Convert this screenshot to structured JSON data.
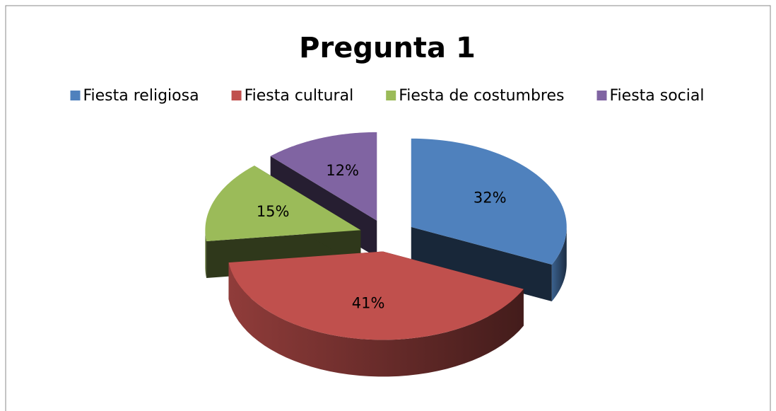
{
  "chart_data": {
    "type": "pie",
    "title": "Pregunta 1",
    "categories": [
      "Fiesta religiosa",
      "Fiesta cultural",
      "Fiesta de costumbres",
      "Fiesta social"
    ],
    "values": [
      32,
      41,
      15,
      12
    ],
    "value_labels": [
      "32%",
      "41%",
      "15%",
      "12%"
    ],
    "colors": [
      "#4f81bd",
      "#c0504d",
      "#9bbb59",
      "#8064a2"
    ],
    "legend": "top"
  }
}
